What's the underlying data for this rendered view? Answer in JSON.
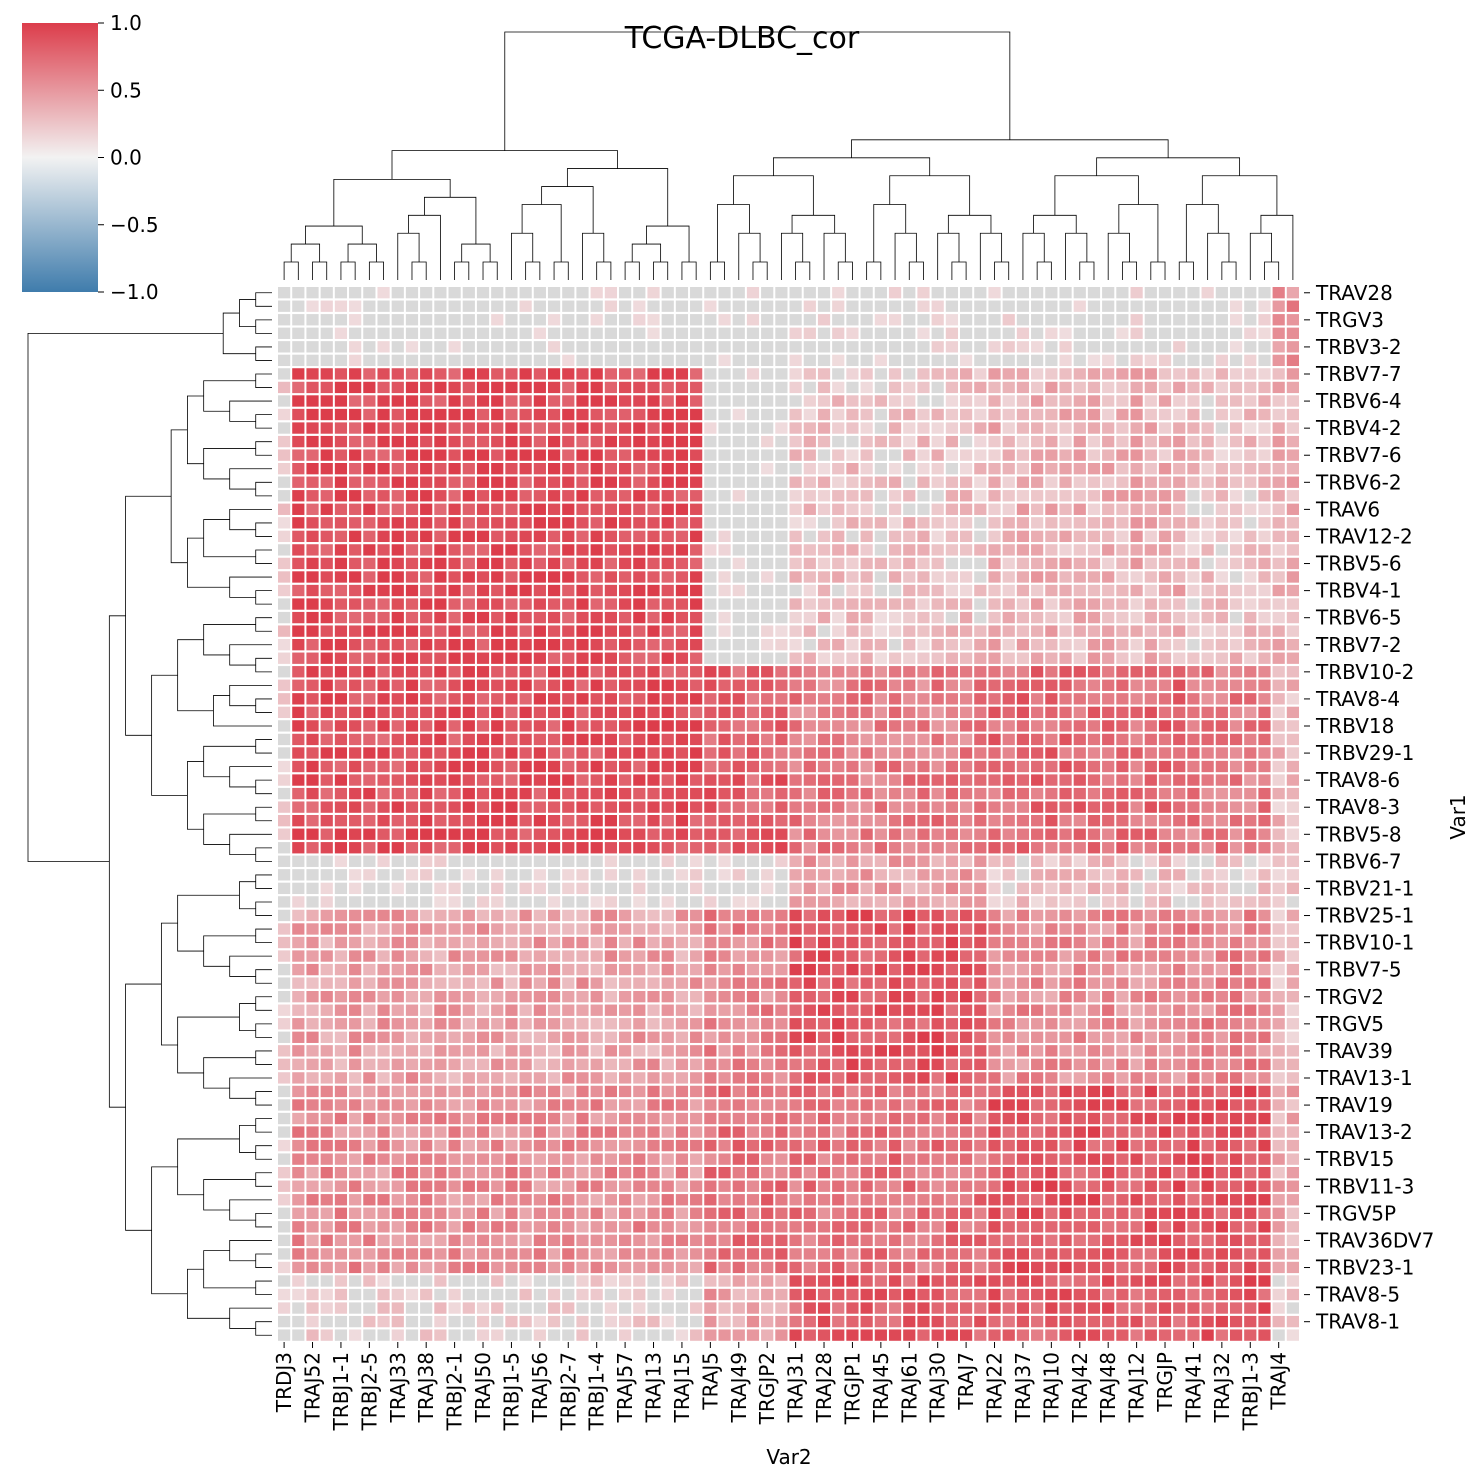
{
  "chart_data": {
    "type": "heatmap",
    "title": "TCGA-DLBC_cor",
    "xlabel": "Var2",
    "ylabel": "Var1",
    "colorbar": {
      "range": [
        -1.0,
        1.0
      ],
      "ticks": [
        "1.0",
        "0.5",
        "0.0",
        "−0.5",
        "−1.0"
      ],
      "colors": {
        "high": "#dc3d4b",
        "mid": "#f2f2f2",
        "low": "#3f7cac"
      },
      "missing_color": "#d9d9d9"
    },
    "x_tick_labels": [
      "TRDJ3",
      "TRAJ52",
      "TRBJ1-1",
      "TRBJ2-5",
      "TRAJ33",
      "TRAJ38",
      "TRBJ2-1",
      "TRAJ50",
      "TRBJ1-5",
      "TRAJ56",
      "TRBJ2-7",
      "TRBJ1-4",
      "TRAJ57",
      "TRAJ13",
      "TRAJ15",
      "TRAJ5",
      "TRAJ49",
      "TRGJP2",
      "TRAJ31",
      "TRAJ28",
      "TRGJP1",
      "TRAJ45",
      "TRAJ61",
      "TRAJ30",
      "TRAJ7",
      "TRAJ22",
      "TRAJ37",
      "TRAJ10",
      "TRAJ42",
      "TRAJ48",
      "TRAJ12",
      "TRGJP",
      "TRAJ41",
      "TRAJ32",
      "TRBJ1-3",
      "TRAJ4"
    ],
    "y_tick_labels": [
      "TRAV28",
      "TRGV3",
      "TRBV3-2",
      "TRBV7-7",
      "TRBV6-4",
      "TRBV4-2",
      "TRBV7-6",
      "TRBV6-2",
      "TRAV6",
      "TRAV12-2",
      "TRBV5-6",
      "TRBV4-1",
      "TRBV6-5",
      "TRBV7-2",
      "TRBV10-2",
      "TRAV8-4",
      "TRBV18",
      "TRBV29-1",
      "TRAV8-6",
      "TRAV8-3",
      "TRBV5-8",
      "TRBV6-7",
      "TRBV21-1",
      "TRBV25-1",
      "TRBV10-1",
      "TRBV7-5",
      "TRGV2",
      "TRGV5",
      "TRAV39",
      "TRAV13-1",
      "TRAV19",
      "TRAV13-2",
      "TRBV15",
      "TRBV11-3",
      "TRGV5P",
      "TRAV36DV7",
      "TRBV23-1",
      "TRAV8-5",
      "TRAV8-1"
    ],
    "grid": {
      "n_rows": 78,
      "n_cols": 72,
      "x_label_every": 2,
      "y_label_every": 2,
      "col_blocks": [
        {
          "name": "A",
          "cols": [
            0,
            1
          ]
        },
        {
          "name": "B",
          "cols": [
            1,
            30
          ]
        },
        {
          "name": "C",
          "cols": [
            30,
            36
          ]
        },
        {
          "name": "D",
          "cols": [
            36,
            50
          ]
        },
        {
          "name": "E",
          "cols": [
            50,
            64
          ]
        },
        {
          "name": "F",
          "cols": [
            64,
            70
          ]
        },
        {
          "name": "G",
          "cols": [
            70,
            72
          ]
        }
      ],
      "row_blocks": [
        {
          "rows": [
            0,
            6
          ],
          "levels": {
            "A": 0.0,
            "B": 0.0,
            "C": 0.0,
            "D": 0.05,
            "E": 0.05,
            "F": 0.05,
            "G": 0.55
          }
        },
        {
          "rows": [
            6,
            28
          ],
          "levels": {
            "A": 0.15,
            "B": 0.93,
            "C": 0.0,
            "D": 0.25,
            "E": 0.35,
            "F": 0.25,
            "G": 0.35
          }
        },
        {
          "rows": [
            28,
            42
          ],
          "levels": {
            "A": 0.15,
            "B": 0.9,
            "C": 0.8,
            "D": 0.65,
            "E": 0.75,
            "F": 0.65,
            "G": 0.3
          }
        },
        {
          "rows": [
            42,
            46
          ],
          "levels": {
            "A": 0.0,
            "B": 0.05,
            "C": 0.1,
            "D": 0.45,
            "E": 0.25,
            "F": 0.2,
            "G": 0.2
          }
        },
        {
          "rows": [
            46,
            59
          ],
          "levels": {
            "A": 0.15,
            "B": 0.45,
            "C": 0.6,
            "D": 0.85,
            "E": 0.55,
            "F": 0.6,
            "G": 0.3
          }
        },
        {
          "rows": [
            59,
            73
          ],
          "levels": {
            "A": 0.1,
            "B": 0.55,
            "C": 0.7,
            "D": 0.7,
            "E": 0.85,
            "F": 0.85,
            "G": 0.4
          }
        },
        {
          "rows": [
            73,
            78
          ],
          "levels": {
            "A": 0.0,
            "B": 0.15,
            "C": 0.45,
            "D": 0.8,
            "E": 0.8,
            "F": 0.85,
            "G": 0.2
          }
        }
      ]
    }
  }
}
